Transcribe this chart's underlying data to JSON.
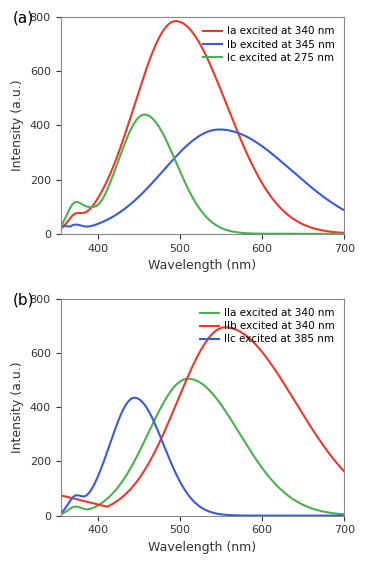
{
  "panel_a": {
    "title": "(a)",
    "xlabel": "Wavelength (nm)",
    "ylabel": "Intensity (a.u.)",
    "xlim": [
      355,
      700
    ],
    "ylim": [
      0,
      800
    ],
    "yticks": [
      0,
      200,
      400,
      600,
      800
    ],
    "xticks": [
      400,
      500,
      600,
      700
    ],
    "curves": [
      {
        "label": "Ia excited at 340 nm",
        "color": "#e8392a",
        "components": [
          {
            "peak": 495,
            "amp": 785,
            "sigma_l": 50,
            "sigma_r": 62
          },
          {
            "peak": 372,
            "amp": 35,
            "sigma_l": 8,
            "sigma_r": 8
          }
        ],
        "floor": 0
      },
      {
        "label": "Ib excited at 345 nm",
        "color": "#3c5bcc",
        "components": [
          {
            "peak": 548,
            "amp": 385,
            "sigma_l": 68,
            "sigma_r": 88
          },
          {
            "peak": 372,
            "amp": 20,
            "sigma_l": 8,
            "sigma_r": 8
          }
        ],
        "floor": 65
      },
      {
        "label": "Ic excited at 275 nm",
        "color": "#4caf50",
        "components": [
          {
            "peak": 457,
            "amp": 440,
            "sigma_l": 32,
            "sigma_r": 38
          },
          {
            "peak": 372,
            "amp": 100,
            "sigma_l": 10,
            "sigma_r": 10
          },
          {
            "peak": 390,
            "amp": 30,
            "sigma_l": 8,
            "sigma_r": 8
          }
        ],
        "floor": 0
      }
    ]
  },
  "panel_b": {
    "title": "(b)",
    "xlabel": "Wavelength (nm)",
    "ylabel": "Intensity (a.u.)",
    "xlim": [
      355,
      700
    ],
    "ylim": [
      0,
      800
    ],
    "yticks": [
      0,
      200,
      400,
      600,
      800
    ],
    "xticks": [
      400,
      500,
      600,
      700
    ],
    "curves": [
      {
        "label": "IIa excited at 340 nm",
        "color": "#4caf50",
        "components": [
          {
            "peak": 510,
            "amp": 505,
            "sigma_l": 48,
            "sigma_r": 62
          },
          {
            "peak": 372,
            "amp": 25,
            "sigma_l": 8,
            "sigma_r": 8
          }
        ],
        "floor": 0
      },
      {
        "label": "IIb excited at 340 nm",
        "color": "#e8392a",
        "components": [
          {
            "peak": 555,
            "amp": 695,
            "sigma_l": 58,
            "sigma_r": 85
          },
          {
            "peak": 372,
            "amp": 28,
            "sigma_l": 8,
            "sigma_r": 8
          }
        ],
        "floor": 150
      },
      {
        "label": "IIc excited at 385 nm",
        "color": "#3c5bcc",
        "components": [
          {
            "peak": 445,
            "amp": 435,
            "sigma_l": 30,
            "sigma_r": 35
          },
          {
            "peak": 372,
            "amp": 50,
            "sigma_l": 8,
            "sigma_r": 8
          }
        ],
        "floor": 0
      }
    ]
  },
  "figure_bg": "#ffffff",
  "axes_bg": "#ffffff",
  "line_width": 1.5
}
